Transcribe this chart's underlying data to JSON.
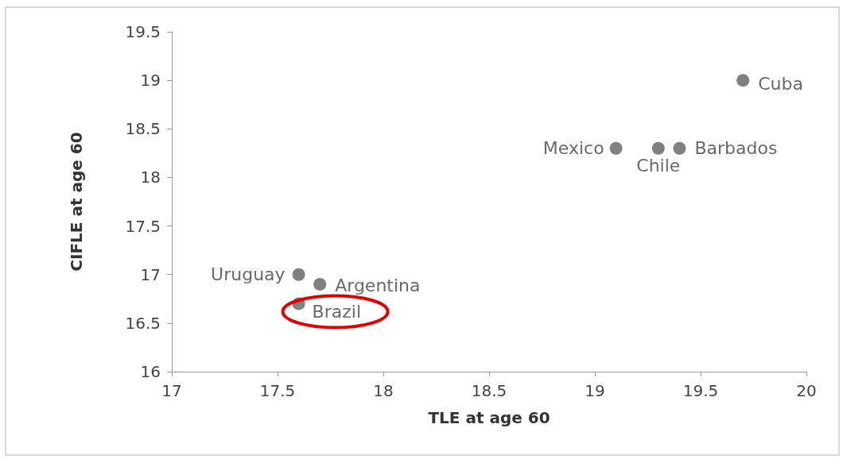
{
  "chart_data": {
    "type": "scatter",
    "xlabel": "TLE at age 60",
    "ylabel": "CIFLE at age 60",
    "x": [
      19.7,
      19.1,
      19.3,
      19.4,
      17.6,
      17.7,
      17.6
    ],
    "values": [
      19.0,
      18.3,
      18.3,
      18.3,
      17.0,
      16.9,
      16.7
    ],
    "color": "#606060",
    "marker": "circle",
    "grid": false,
    "xlim": [
      17,
      20
    ],
    "xticks": [
      17,
      17.5,
      18,
      18.5,
      19,
      19.5,
      20
    ],
    "ylim": [
      16,
      19.5
    ],
    "yticks": [
      16,
      16.5,
      17,
      17.5,
      18,
      18.5,
      19,
      19.5
    ],
    "annotations": [
      {
        "text": "Cuba",
        "x": 19.7,
        "y": 19.0
      },
      {
        "text": "Mexico",
        "x": 19.1,
        "y": 18.3
      },
      {
        "text": "Chile",
        "x": 19.3,
        "y": 18.3
      },
      {
        "text": "Barbados",
        "x": 19.4,
        "y": 18.3
      },
      {
        "text": "Uruguay",
        "x": 17.6,
        "y": 17.0
      },
      {
        "text": "Argentina",
        "x": 17.7,
        "y": 16.9
      },
      {
        "text": "Brazil",
        "x": 17.6,
        "y": 16.7
      }
    ]
  }
}
